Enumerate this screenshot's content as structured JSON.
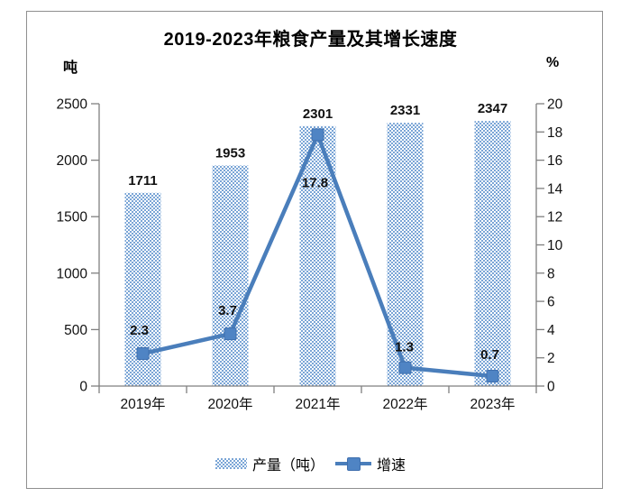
{
  "title": "2019-2023年粮食产量及其增长速度",
  "legend": {
    "items": [
      {
        "label": "产量（吨）",
        "type": "bar"
      },
      {
        "label": "增速",
        "type": "line"
      }
    ]
  },
  "colors": {
    "bar_pattern_blue": "#7aa5d6",
    "line_blue": "#4a7ebb",
    "marker_fill": "#4f84c4",
    "marker_stroke": "#3f6fae",
    "axis_gray": "#7f7f7f",
    "frame_gray": "#8f8f8f",
    "text_black": "#000000"
  },
  "chart_data": {
    "type": "bar",
    "subtype": "combo bar+line, dual axis",
    "title": "2019-2023年粮食产量及其增长速度",
    "categories": [
      "2019年",
      "2020年",
      "2021年",
      "2022年",
      "2023年"
    ],
    "series": [
      {
        "name": "产量（吨）",
        "type": "bar",
        "axis": "left",
        "values": [
          1711,
          1953,
          2301,
          2331,
          2347
        ]
      },
      {
        "name": "增速",
        "type": "line",
        "axis": "right",
        "values": [
          2.3,
          3.7,
          17.8,
          1.3,
          0.7
        ]
      }
    ],
    "left_ylabel": "吨",
    "right_ylabel": "%",
    "left_ylim": [
      0,
      2500
    ],
    "left_ticks": [
      0,
      500,
      1000,
      1500,
      2000,
      2500
    ],
    "right_ylim": [
      0,
      20
    ],
    "right_ticks": [
      0,
      2,
      4,
      6,
      8,
      10,
      12,
      14,
      16,
      18,
      20
    ],
    "grid": false,
    "legend_position": "bottom",
    "data_labels": true
  }
}
